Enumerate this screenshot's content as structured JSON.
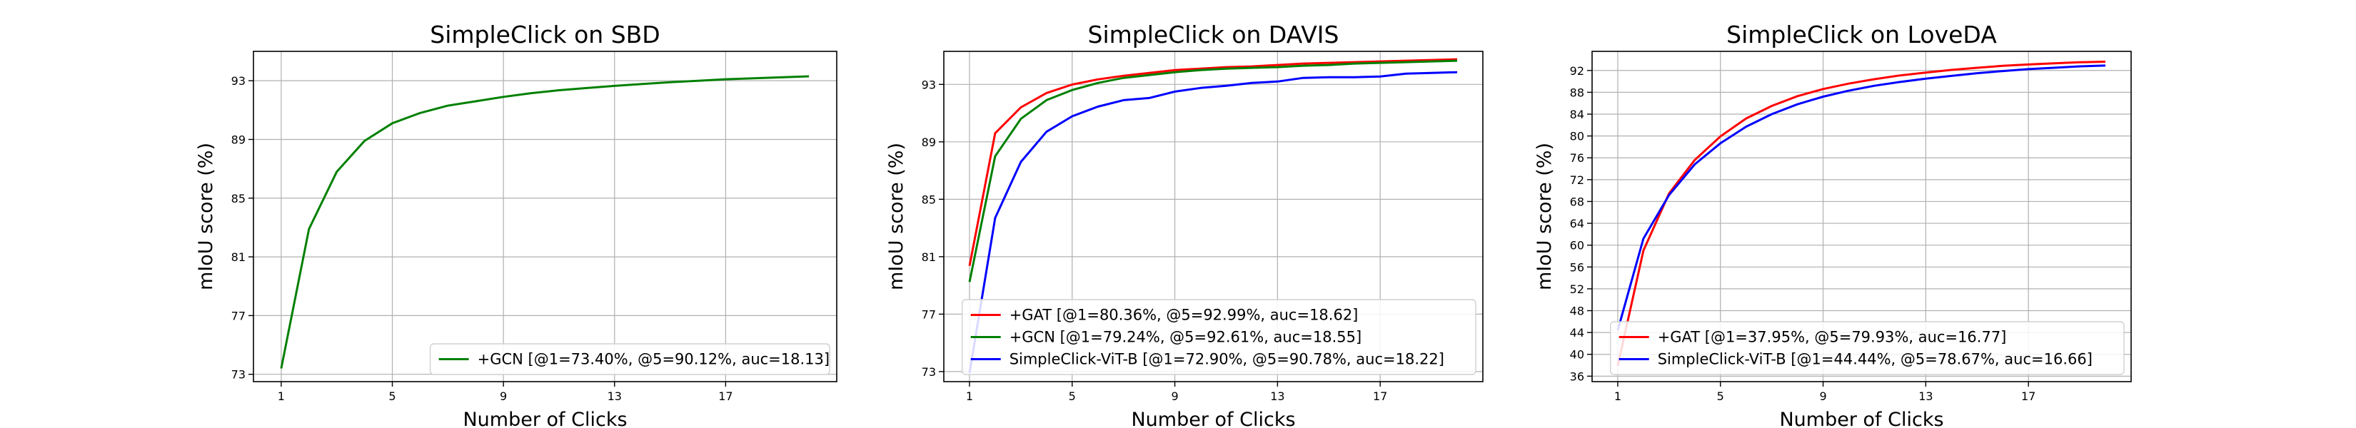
{
  "chart_data": [
    {
      "type": "line",
      "title": "SimpleClick on SBD",
      "xlabel": "Number of Clicks",
      "ylabel": "mIoU score (%)",
      "xlim": [
        0.0,
        21.0
      ],
      "ylim": [
        72.5,
        95.0
      ],
      "xticks": [
        1,
        5,
        9,
        13,
        17
      ],
      "yticks": [
        73,
        77,
        81,
        85,
        89,
        93
      ],
      "grid": true,
      "legend_position": "lower right",
      "x": [
        1,
        2,
        3,
        4,
        5,
        6,
        7,
        8,
        9,
        10,
        11,
        12,
        13,
        14,
        15,
        16,
        17,
        18,
        19,
        20
      ],
      "series": [
        {
          "name": "+GCN [@1=73.40%, @5=90.12%, auc=18.13]",
          "color": "#008000",
          "values": [
            73.4,
            82.9,
            86.8,
            88.9,
            90.1,
            90.8,
            91.3,
            91.6,
            91.9,
            92.15,
            92.35,
            92.5,
            92.65,
            92.78,
            92.9,
            93.0,
            93.1,
            93.17,
            93.23,
            93.3
          ]
        }
      ]
    },
    {
      "type": "line",
      "title": "SimpleClick on DAVIS",
      "xlabel": "Number of Clicks",
      "ylabel": "mIoU score (%)",
      "xlim": [
        0.0,
        21.0
      ],
      "ylim": [
        72.3,
        95.3
      ],
      "xticks": [
        1,
        5,
        9,
        13,
        17
      ],
      "yticks": [
        73,
        77,
        81,
        85,
        89,
        93
      ],
      "grid": true,
      "legend_position": "lower right",
      "x": [
        1,
        2,
        3,
        4,
        5,
        6,
        7,
        8,
        9,
        10,
        11,
        12,
        13,
        14,
        15,
        16,
        17,
        18,
        19,
        20
      ],
      "series": [
        {
          "name": "+GAT [@1=80.36%, @5=92.99%, auc=18.62]",
          "color": "#ff0000",
          "values": [
            80.36,
            89.6,
            91.4,
            92.4,
            92.99,
            93.35,
            93.6,
            93.8,
            94.0,
            94.1,
            94.2,
            94.25,
            94.35,
            94.45,
            94.5,
            94.55,
            94.6,
            94.65,
            94.7,
            94.75
          ]
        },
        {
          "name": "+GCN [@1=79.24%, @5=92.61%, auc=18.55]",
          "color": "#008000",
          "values": [
            79.24,
            88.0,
            90.6,
            91.9,
            92.61,
            93.1,
            93.45,
            93.65,
            93.85,
            94.0,
            94.1,
            94.15,
            94.2,
            94.3,
            94.35,
            94.45,
            94.5,
            94.55,
            94.6,
            94.65
          ]
        },
        {
          "name": "SimpleClick-ViT-B [@1=72.90%, @5=90.78%, auc=18.22]",
          "color": "#0000ff",
          "values": [
            72.9,
            83.7,
            87.6,
            89.7,
            90.78,
            91.45,
            91.9,
            92.05,
            92.5,
            92.75,
            92.9,
            93.1,
            93.2,
            93.45,
            93.5,
            93.5,
            93.55,
            93.75,
            93.8,
            93.85
          ]
        }
      ]
    },
    {
      "type": "line",
      "title": "SimpleClick on LoveDA",
      "xlabel": "Number of Clicks",
      "ylabel": "mIoU score (%)",
      "xlim": [
        0.0,
        21.0
      ],
      "ylim": [
        35.0,
        95.5
      ],
      "xticks": [
        1,
        5,
        9,
        13,
        17
      ],
      "yticks": [
        36,
        40,
        44,
        48,
        52,
        56,
        60,
        64,
        68,
        72,
        76,
        80,
        84,
        88,
        92
      ],
      "grid": true,
      "legend_position": "lower right",
      "x": [
        1,
        2,
        3,
        4,
        5,
        6,
        7,
        8,
        9,
        10,
        11,
        12,
        13,
        14,
        15,
        16,
        17,
        18,
        19,
        20
      ],
      "series": [
        {
          "name": "+GAT [@1=37.95%, @5=79.93%, auc=16.77]",
          "color": "#ff0000",
          "values": [
            37.95,
            59.0,
            69.5,
            75.6,
            79.93,
            83.2,
            85.5,
            87.3,
            88.6,
            89.6,
            90.4,
            91.1,
            91.6,
            92.1,
            92.5,
            92.85,
            93.1,
            93.3,
            93.5,
            93.6
          ]
        },
        {
          "name": "SimpleClick-ViT-B [@1=44.44%, @5=78.67%, auc=16.66]",
          "color": "#0000ff",
          "values": [
            44.44,
            61.2,
            69.2,
            74.8,
            78.67,
            81.7,
            84.0,
            85.8,
            87.2,
            88.3,
            89.2,
            89.9,
            90.5,
            91.0,
            91.5,
            91.9,
            92.25,
            92.5,
            92.75,
            92.9
          ]
        }
      ]
    }
  ]
}
